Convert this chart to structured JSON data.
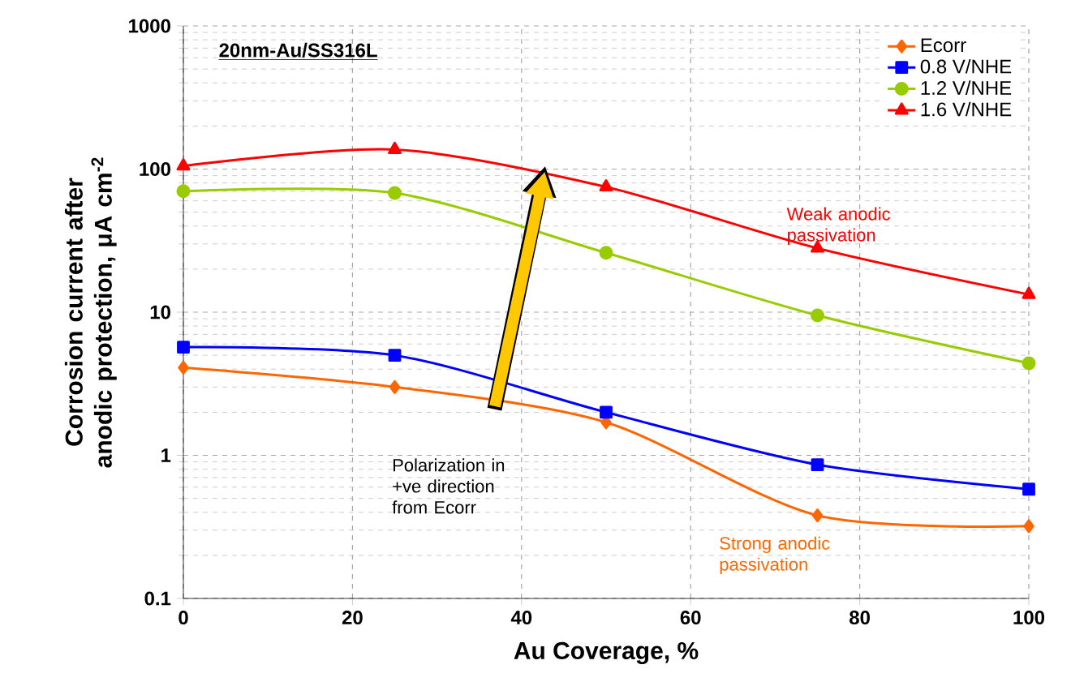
{
  "chart_data": {
    "type": "line",
    "xlabel": "Au Coverage, %",
    "ylabel": "Corrosion current after anodic protection, μA cm$^{-2}$",
    "x": [
      0,
      25,
      50,
      75,
      100
    ],
    "series": [
      {
        "name": "Ecorr",
        "color": "#ff6600",
        "marker": "diamond",
        "values": [
          4.1,
          3.0,
          1.7,
          0.38,
          0.32
        ]
      },
      {
        "name": "0.8 V/NHE",
        "color": "#0000ff",
        "marker": "square",
        "values": [
          5.7,
          5.0,
          2.0,
          0.86,
          0.58
        ]
      },
      {
        "name": "1.2 V/NHE",
        "color": "#99cc00",
        "marker": "circle",
        "values": [
          70,
          68,
          26,
          9.5,
          4.4
        ]
      },
      {
        "name": "1.6 V/NHE",
        "color": "#ff0000",
        "marker": "triangle",
        "values": [
          105,
          137,
          75,
          28,
          13.3
        ]
      }
    ],
    "xlim": [
      0,
      100
    ],
    "xticks": [
      0,
      20,
      40,
      60,
      80,
      100
    ],
    "ylim": [
      0.1,
      1000
    ],
    "yticks": [
      0.1,
      1,
      10,
      100,
      1000
    ],
    "log": "y",
    "grid": true,
    "legend": "top right",
    "annotations": [
      "20nm-Au/SS316L",
      "Weak anodic passivation",
      "Strong anodic passivation",
      "Polarization in +ve direction from Ecorr"
    ]
  }
}
